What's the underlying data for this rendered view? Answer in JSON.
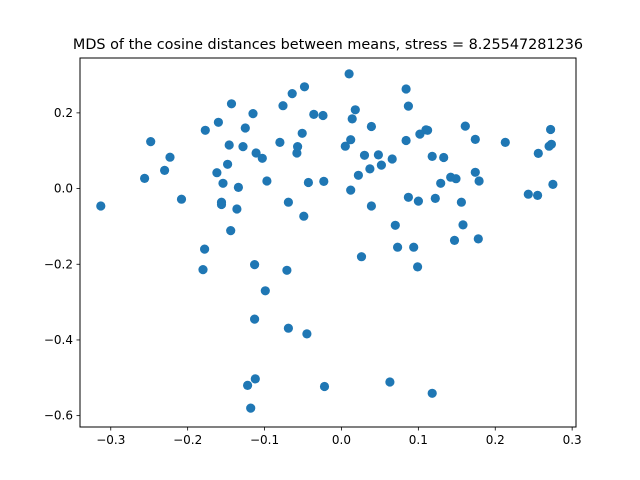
{
  "chart_data": {
    "type": "scatter",
    "title": "MDS of the cosine distances between means, stress = 8.25547281236",
    "xlabel": "",
    "ylabel": "",
    "xlim": [
      -0.34,
      0.305
    ],
    "ylim": [
      -0.63,
      0.345
    ],
    "x_ticks": [
      -0.3,
      -0.2,
      -0.1,
      0.0,
      0.1,
      0.2,
      0.3
    ],
    "x_tick_labels": [
      "−0.3",
      "−0.2",
      "−0.1",
      "0.0",
      "0.1",
      "0.2",
      "0.3"
    ],
    "y_ticks": [
      -0.6,
      -0.4,
      -0.2,
      0.0,
      0.2
    ],
    "y_tick_labels": [
      "−0.6",
      "−0.4",
      "−0.2",
      "0.0",
      "0.2"
    ],
    "grid": false,
    "legend": "none",
    "marker_color": "#1f77b4",
    "points": [
      {
        "x": -0.313,
        "y": -0.046
      },
      {
        "x": -0.256,
        "y": 0.027
      },
      {
        "x": -0.248,
        "y": 0.124
      },
      {
        "x": -0.23,
        "y": 0.048
      },
      {
        "x": -0.223,
        "y": 0.083
      },
      {
        "x": -0.208,
        "y": -0.028
      },
      {
        "x": -0.18,
        "y": -0.214
      },
      {
        "x": -0.178,
        "y": -0.16
      },
      {
        "x": -0.177,
        "y": 0.154
      },
      {
        "x": -0.162,
        "y": 0.042
      },
      {
        "x": -0.16,
        "y": 0.175
      },
      {
        "x": -0.156,
        "y": -0.036
      },
      {
        "x": -0.156,
        "y": -0.042
      },
      {
        "x": -0.154,
        "y": 0.014
      },
      {
        "x": -0.148,
        "y": 0.064
      },
      {
        "x": -0.146,
        "y": 0.115
      },
      {
        "x": -0.144,
        "y": -0.111
      },
      {
        "x": -0.143,
        "y": 0.224
      },
      {
        "x": -0.136,
        "y": -0.054
      },
      {
        "x": -0.134,
        "y": 0.003
      },
      {
        "x": -0.128,
        "y": 0.111
      },
      {
        "x": -0.125,
        "y": 0.16
      },
      {
        "x": -0.122,
        "y": -0.52
      },
      {
        "x": -0.118,
        "y": -0.58
      },
      {
        "x": -0.115,
        "y": 0.198
      },
      {
        "x": -0.113,
        "y": -0.201
      },
      {
        "x": -0.113,
        "y": -0.345
      },
      {
        "x": -0.112,
        "y": -0.503
      },
      {
        "x": -0.111,
        "y": 0.094
      },
      {
        "x": -0.103,
        "y": 0.08
      },
      {
        "x": -0.099,
        "y": -0.27
      },
      {
        "x": -0.097,
        "y": 0.02
      },
      {
        "x": -0.08,
        "y": 0.122
      },
      {
        "x": -0.076,
        "y": 0.219
      },
      {
        "x": -0.071,
        "y": -0.216
      },
      {
        "x": -0.069,
        "y": -0.036
      },
      {
        "x": -0.069,
        "y": -0.369
      },
      {
        "x": -0.064,
        "y": 0.251
      },
      {
        "x": -0.058,
        "y": 0.094
      },
      {
        "x": -0.057,
        "y": 0.111
      },
      {
        "x": -0.051,
        "y": 0.146
      },
      {
        "x": -0.049,
        "y": -0.073
      },
      {
        "x": -0.048,
        "y": 0.269
      },
      {
        "x": -0.045,
        "y": -0.384
      },
      {
        "x": -0.043,
        "y": 0.016
      },
      {
        "x": -0.036,
        "y": 0.196
      },
      {
        "x": -0.024,
        "y": 0.193
      },
      {
        "x": -0.023,
        "y": 0.019
      },
      {
        "x": -0.022,
        "y": -0.523
      },
      {
        "x": 0.005,
        "y": 0.112
      },
      {
        "x": 0.01,
        "y": 0.303
      },
      {
        "x": 0.012,
        "y": 0.129
      },
      {
        "x": 0.012,
        "y": -0.004
      },
      {
        "x": 0.014,
        "y": 0.184
      },
      {
        "x": 0.018,
        "y": 0.208
      },
      {
        "x": 0.022,
        "y": 0.035
      },
      {
        "x": 0.026,
        "y": -0.18
      },
      {
        "x": 0.03,
        "y": 0.088
      },
      {
        "x": 0.037,
        "y": 0.052
      },
      {
        "x": 0.039,
        "y": 0.164
      },
      {
        "x": 0.039,
        "y": -0.046
      },
      {
        "x": 0.048,
        "y": 0.089
      },
      {
        "x": 0.052,
        "y": 0.062
      },
      {
        "x": 0.063,
        "y": -0.511
      },
      {
        "x": 0.066,
        "y": 0.078
      },
      {
        "x": 0.07,
        "y": -0.097
      },
      {
        "x": 0.073,
        "y": -0.155
      },
      {
        "x": 0.084,
        "y": 0.263
      },
      {
        "x": 0.084,
        "y": 0.127
      },
      {
        "x": 0.087,
        "y": 0.218
      },
      {
        "x": 0.087,
        "y": -0.023
      },
      {
        "x": 0.094,
        "y": -0.155
      },
      {
        "x": 0.099,
        "y": -0.207
      },
      {
        "x": 0.1,
        "y": -0.033
      },
      {
        "x": 0.102,
        "y": 0.144
      },
      {
        "x": 0.11,
        "y": 0.155
      },
      {
        "x": 0.112,
        "y": 0.154
      },
      {
        "x": 0.118,
        "y": 0.085
      },
      {
        "x": 0.118,
        "y": -0.541
      },
      {
        "x": 0.122,
        "y": -0.026
      },
      {
        "x": 0.129,
        "y": 0.014
      },
      {
        "x": 0.133,
        "y": 0.082
      },
      {
        "x": 0.142,
        "y": 0.03
      },
      {
        "x": 0.147,
        "y": -0.137
      },
      {
        "x": 0.149,
        "y": 0.026
      },
      {
        "x": 0.156,
        "y": -0.036
      },
      {
        "x": 0.158,
        "y": -0.096
      },
      {
        "x": 0.161,
        "y": 0.165
      },
      {
        "x": 0.174,
        "y": 0.13
      },
      {
        "x": 0.174,
        "y": 0.043
      },
      {
        "x": 0.178,
        "y": -0.133
      },
      {
        "x": 0.179,
        "y": 0.02
      },
      {
        "x": 0.213,
        "y": 0.122
      },
      {
        "x": 0.243,
        "y": -0.015
      },
      {
        "x": 0.255,
        "y": -0.018
      },
      {
        "x": 0.256,
        "y": 0.093
      },
      {
        "x": 0.27,
        "y": 0.112
      },
      {
        "x": 0.272,
        "y": 0.156
      },
      {
        "x": 0.273,
        "y": 0.117
      },
      {
        "x": 0.275,
        "y": 0.011
      }
    ]
  }
}
